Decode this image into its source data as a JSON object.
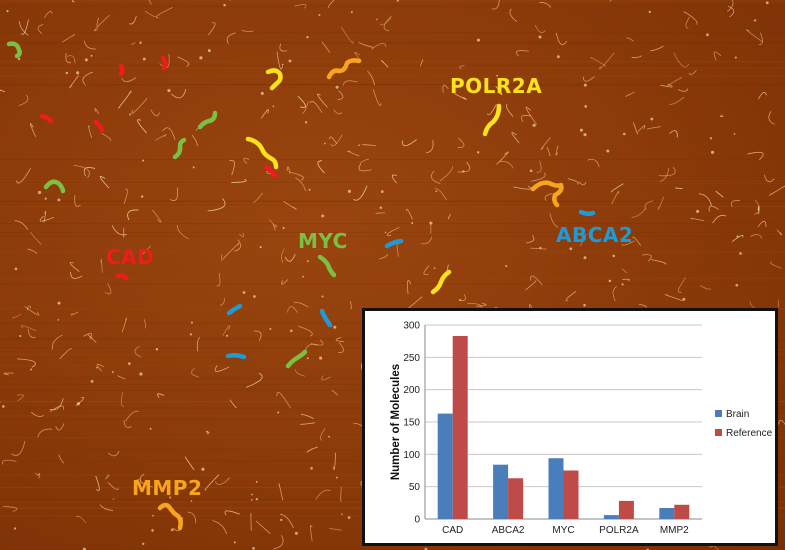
{
  "labels": {
    "polr2a": "POLR2A",
    "myc": "MYC",
    "abca2": "ABCA2",
    "cad": "CAD",
    "mmp2": "MMP2"
  },
  "colors": {
    "cad": "#ee1c1c",
    "myc": "#7ac143",
    "abca2": "#1e9bd7",
    "polr2a": "#ffe21a",
    "mmp2": "#f7a51c",
    "brain": "#4a7ebb",
    "reference": "#be4b48"
  },
  "chart_data": {
    "type": "bar",
    "categories": [
      "CAD",
      "ABCA2",
      "MYC",
      "POLR2A",
      "MMP2"
    ],
    "series": [
      {
        "name": "Brain",
        "values": [
          163,
          84,
          94,
          6,
          17
        ]
      },
      {
        "name": "Reference",
        "values": [
          283,
          63,
          75,
          28,
          22
        ]
      }
    ],
    "ylabel": "Number of Molecules",
    "ylim": [
      0,
      300
    ],
    "yticks": [
      "0",
      "50",
      "100",
      "150",
      "200",
      "250",
      "300"
    ],
    "grid": true,
    "legend": "right"
  }
}
